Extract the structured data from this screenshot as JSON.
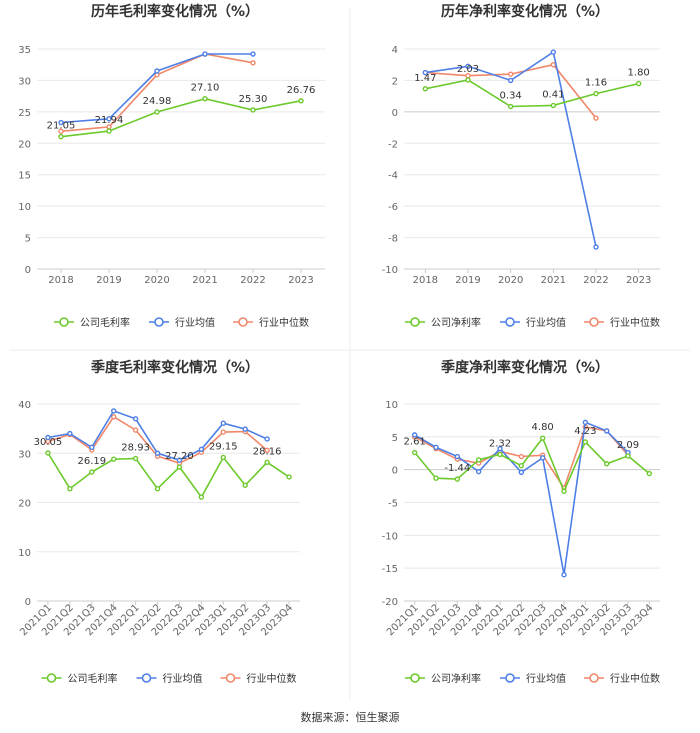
{
  "source": "数据来源：恒生聚源",
  "colors": {
    "company": "#6cc92c",
    "avg": "#4d7fe6",
    "median": "#f0876a",
    "grid": "#e8e8e8",
    "axis": "#cccccc",
    "tick": "#666666",
    "title": "#333333",
    "label": "#333333"
  },
  "chart_data": [
    {
      "id": "annual-gross",
      "type": "line",
      "title": "历年毛利率变化情况（%）",
      "categories": [
        "2018",
        "2019",
        "2020",
        "2021",
        "2022",
        "2023"
      ],
      "ylim": [
        0,
        35
      ],
      "yticks": [
        0,
        5,
        10,
        15,
        20,
        25,
        30,
        35
      ],
      "series": [
        {
          "name": "公司毛利率",
          "key": "company",
          "values": [
            21.05,
            21.94,
            24.98,
            27.1,
            25.3,
            26.76
          ]
        },
        {
          "name": "行业均值",
          "key": "avg",
          "values": [
            23.3,
            23.9,
            31.5,
            34.2,
            34.2,
            null
          ]
        },
        {
          "name": "行业中位数",
          "key": "median",
          "values": [
            21.9,
            22.6,
            30.9,
            34.2,
            32.8,
            null
          ]
        }
      ],
      "labels": [
        "21.05",
        "21.94",
        "24.98",
        "27.10",
        "25.30",
        "26.76"
      ]
    },
    {
      "id": "annual-net",
      "type": "line",
      "title": "历年净利率变化情况（%）",
      "categories": [
        "2018",
        "2019",
        "2020",
        "2021",
        "2022",
        "2023"
      ],
      "ylim": [
        -10,
        4
      ],
      "yticks": [
        -10,
        -8,
        -6,
        -4,
        -2,
        0,
        2,
        4
      ],
      "series": [
        {
          "name": "公司净利率",
          "key": "company",
          "values": [
            1.47,
            2.03,
            0.34,
            0.41,
            1.16,
            1.8
          ]
        },
        {
          "name": "行业均值",
          "key": "avg",
          "values": [
            2.5,
            2.9,
            2.0,
            3.8,
            -8.6,
            null
          ]
        },
        {
          "name": "行业中位数",
          "key": "median",
          "values": [
            2.5,
            2.3,
            2.4,
            3.0,
            -0.4,
            null
          ]
        }
      ],
      "labels": [
        "1.47",
        "2.03",
        "0.34",
        "0.41",
        "1.16",
        "1.80"
      ]
    },
    {
      "id": "quarterly-gross",
      "type": "line",
      "title": "季度毛利率变化情况（%）",
      "categories": [
        "2021Q1",
        "2021Q2",
        "2021Q3",
        "2021Q4",
        "2022Q1",
        "2022Q2",
        "2022Q3",
        "2022Q4",
        "2023Q1",
        "2023Q2",
        "2023Q3",
        "2023Q4"
      ],
      "ylim": [
        0,
        40
      ],
      "yticks": [
        0,
        10,
        20,
        30,
        40
      ],
      "series": [
        {
          "name": "公司毛利率",
          "key": "company",
          "values": [
            30.05,
            22.8,
            26.19,
            28.8,
            28.93,
            22.8,
            27.2,
            21.1,
            29.15,
            23.5,
            28.16,
            25.2
          ]
        },
        {
          "name": "行业均值",
          "key": "avg",
          "values": [
            33.2,
            34.0,
            31.2,
            38.6,
            37.0,
            30.0,
            28.6,
            30.8,
            36.1,
            34.9,
            32.9,
            null
          ]
        },
        {
          "name": "行业中位数",
          "key": "median",
          "values": [
            32.4,
            33.8,
            30.7,
            37.4,
            34.7,
            29.4,
            28.0,
            30.2,
            34.3,
            34.4,
            30.6,
            null
          ]
        }
      ],
      "labels": [
        "30.05",
        "",
        "26.19",
        "",
        "28.93",
        "",
        "27.20",
        "",
        "29.15",
        "",
        "28.16",
        ""
      ]
    },
    {
      "id": "quarterly-net",
      "type": "line",
      "title": "季度净利率变化情况（%）",
      "categories": [
        "2021Q1",
        "2021Q2",
        "2021Q3",
        "2021Q4",
        "2022Q1",
        "2022Q2",
        "2022Q3",
        "2022Q4",
        "2023Q1",
        "2023Q2",
        "2023Q3",
        "2023Q4"
      ],
      "ylim": [
        -20,
        10
      ],
      "yticks": [
        -20,
        -15,
        -10,
        -5,
        0,
        5,
        10
      ],
      "series": [
        {
          "name": "公司净利率",
          "key": "company",
          "values": [
            2.61,
            -1.3,
            -1.44,
            1.5,
            2.32,
            0.6,
            4.8,
            -3.3,
            4.23,
            0.9,
            2.09,
            -0.6
          ]
        },
        {
          "name": "行业均值",
          "key": "avg",
          "values": [
            5.3,
            3.4,
            2.0,
            -0.3,
            3.2,
            -0.4,
            1.8,
            -16.0,
            7.2,
            5.9,
            2.6,
            null
          ]
        },
        {
          "name": "行业中位数",
          "key": "median",
          "values": [
            5.0,
            3.2,
            1.6,
            1.0,
            2.8,
            2.0,
            2.2,
            -2.8,
            6.5,
            5.9,
            2.2,
            null
          ]
        }
      ],
      "labels": [
        "2.61",
        "",
        "-1.44",
        "",
        "2.32",
        "",
        "4.80",
        "",
        "4.23",
        "",
        "2.09",
        ""
      ]
    }
  ]
}
